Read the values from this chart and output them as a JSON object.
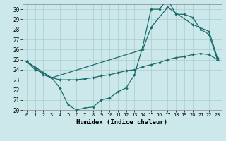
{
  "xlabel": "Humidex (Indice chaleur)",
  "background_color": "#cce8ea",
  "grid_color": "#aacccc",
  "line_color": "#1a6b6b",
  "xlim": [
    -0.5,
    23.5
  ],
  "ylim": [
    20,
    30.5
  ],
  "xticks": [
    0,
    1,
    2,
    3,
    4,
    5,
    6,
    7,
    8,
    9,
    10,
    11,
    12,
    13,
    14,
    15,
    16,
    17,
    18,
    19,
    20,
    21,
    22,
    23
  ],
  "yticks": [
    20,
    21,
    22,
    23,
    24,
    25,
    26,
    27,
    28,
    29,
    30
  ],
  "line1_x": [
    0,
    1,
    2,
    3,
    4,
    5,
    6,
    7,
    8,
    9,
    10,
    11,
    12,
    13,
    14,
    15,
    16,
    17,
    18,
    19,
    20,
    21,
    22,
    23
  ],
  "line1_y": [
    24.8,
    24.2,
    23.5,
    23.2,
    22.2,
    20.5,
    20.0,
    20.2,
    20.3,
    21.0,
    21.2,
    21.8,
    22.2,
    23.5,
    26.3,
    30.0,
    30.0,
    31.0,
    29.5,
    29.5,
    29.2,
    28.0,
    27.5,
    25.0
  ],
  "line2_x": [
    0,
    3,
    14,
    15,
    17,
    20,
    22,
    23
  ],
  "line2_y": [
    24.8,
    23.2,
    26.0,
    28.2,
    30.2,
    28.5,
    27.8,
    25.2
  ],
  "line3_x": [
    0,
    1,
    2,
    3,
    4,
    5,
    6,
    7,
    8,
    9,
    10,
    11,
    12,
    13,
    14,
    15,
    16,
    17,
    18,
    19,
    20,
    21,
    22,
    23
  ],
  "line3_y": [
    24.8,
    24.0,
    23.7,
    23.2,
    23.0,
    23.0,
    23.0,
    23.1,
    23.2,
    23.4,
    23.5,
    23.7,
    23.9,
    24.0,
    24.3,
    24.5,
    24.7,
    25.0,
    25.2,
    25.3,
    25.5,
    25.6,
    25.5,
    25.0
  ]
}
